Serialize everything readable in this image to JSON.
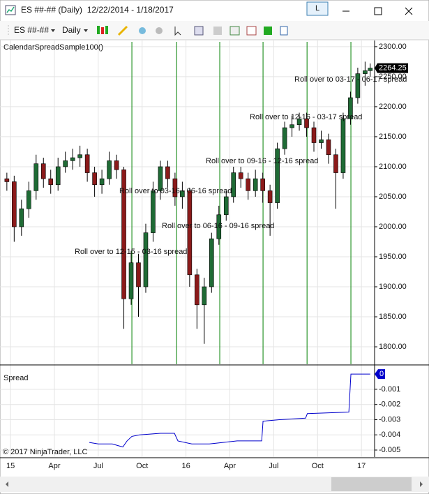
{
  "window": {
    "title": "ES ##-## (Daily)  12/22/2014 - 1/18/2017",
    "button": "L"
  },
  "toolbar": {
    "instrument": "ES ##-##",
    "interval": "Daily"
  },
  "chart_data": [
    {
      "type": "candlestick",
      "title": "CalendarSpreadSample100()",
      "x": [
        -0.25,
        0.25,
        0.75,
        1.25,
        1.75,
        2.25,
        2.75,
        3.25,
        3.75,
        4.25,
        4.75,
        5.25,
        5.75,
        6.25,
        6.75,
        7.25,
        7.75,
        8.25,
        8.75,
        9.25,
        9.75,
        10.25,
        10.75,
        11.25,
        11.75,
        12.25,
        12.75,
        13.25,
        13.75,
        14.25,
        14.75,
        15.25,
        15.75,
        16.25,
        16.75,
        17.25,
        17.75,
        18.25,
        18.75,
        19.25,
        19.75,
        20.25,
        20.75,
        21.25,
        21.75,
        22.25,
        22.75,
        23.25,
        23.75,
        24.25,
        24.6
      ],
      "open": [
        2080,
        2075,
        2000,
        2030,
        2060,
        2105,
        2080,
        2070,
        2100,
        2110,
        2115,
        2120,
        2090,
        2070,
        2080,
        2110,
        2095,
        1880,
        1940,
        1900,
        1990,
        2060,
        2100,
        2080,
        2050,
        2060,
        1920,
        1870,
        1900,
        1980,
        2020,
        2050,
        2090,
        2080,
        2060,
        2080,
        2060,
        2040,
        2130,
        2165,
        2170,
        2180,
        2165,
        2140,
        2145,
        2120,
        2090,
        2180,
        2215,
        2255,
        2260
      ],
      "high": [
        2090,
        2085,
        2045,
        2075,
        2120,
        2115,
        2095,
        2115,
        2125,
        2130,
        2135,
        2130,
        2100,
        2095,
        2125,
        2120,
        2100,
        1960,
        1955,
        2005,
        2075,
        2110,
        2110,
        2090,
        2075,
        2065,
        1930,
        1915,
        1990,
        2035,
        2060,
        2100,
        2100,
        2090,
        2095,
        2090,
        2070,
        2140,
        2175,
        2185,
        2190,
        2190,
        2175,
        2160,
        2155,
        2130,
        2190,
        2225,
        2265,
        2275,
        2272
      ],
      "low": [
        2060,
        1975,
        1985,
        2015,
        2045,
        2065,
        2055,
        2060,
        2090,
        2095,
        2100,
        2075,
        2050,
        2055,
        2070,
        2080,
        1830,
        1870,
        1850,
        1890,
        1975,
        2045,
        2065,
        2035,
        2030,
        1900,
        1830,
        1805,
        1890,
        1970,
        2010,
        2040,
        2065,
        2045,
        2050,
        2040,
        1985,
        2030,
        2120,
        2150,
        2160,
        2150,
        2125,
        2130,
        2105,
        2030,
        2080,
        2170,
        2205,
        2235,
        2250
      ],
      "close": [
        2075,
        2000,
        2030,
        2060,
        2105,
        2080,
        2070,
        2100,
        2110,
        2115,
        2120,
        2090,
        2070,
        2080,
        2110,
        2095,
        1880,
        1940,
        1900,
        1990,
        2060,
        2100,
        2080,
        2050,
        2060,
        1920,
        1870,
        1900,
        1980,
        2020,
        2050,
        2090,
        2080,
        2060,
        2080,
        2060,
        2040,
        2130,
        2165,
        2170,
        2180,
        2165,
        2140,
        2145,
        2120,
        2090,
        2180,
        2215,
        2255,
        2260,
        2264.25
      ],
      "up_color": "#1f6b35",
      "down_color": "#8b1a1a",
      "xlim": [
        -0.72,
        24.9
      ],
      "xticks": [
        {
          "value": 0,
          "label": "15"
        },
        {
          "value": 3,
          "label": "Apr"
        },
        {
          "value": 6,
          "label": "Jul"
        },
        {
          "value": 9,
          "label": "Oct"
        },
        {
          "value": 12,
          "label": "16"
        },
        {
          "value": 15,
          "label": "Apr"
        },
        {
          "value": 18,
          "label": "Jul"
        },
        {
          "value": 21,
          "label": "Oct"
        },
        {
          "value": 24,
          "label": "17"
        }
      ],
      "ylim": [
        1771,
        2308
      ],
      "yticks": [
        {
          "value": 1800,
          "label": "1800.00"
        },
        {
          "value": 1850,
          "label": "1850.00"
        },
        {
          "value": 1900,
          "label": "1900.00"
        },
        {
          "value": 1950,
          "label": "1950.00"
        },
        {
          "value": 2000,
          "label": "2000.00"
        },
        {
          "value": 2050,
          "label": "2050.00"
        },
        {
          "value": 2100,
          "label": "2100.00"
        },
        {
          "value": 2150,
          "label": "2150.00"
        },
        {
          "value": 2200,
          "label": "2200.00"
        },
        {
          "value": 2250,
          "label": "2250.00"
        },
        {
          "value": 2300,
          "label": "2300.00"
        }
      ],
      "grid": true,
      "rollovers": [
        8.3,
        11.36,
        14.31,
        17.27,
        20.28,
        23.28
      ],
      "rollover_color": "#008000",
      "annotations": [
        "Roll over to 12-15 - 03-16 spread",
        "Roll over to 03-16 - 06-16 spread",
        "Roll over to 06-16 - 09-16 spread",
        "Roll over to 09-16 - 12-16 spread",
        "Roll over to 12-16 - 03-17 spread",
        "Roll over to 03-17 - 06-17 spread"
      ]
    },
    {
      "type": "line",
      "title": "Spread",
      "x": [
        5.39,
        6.0,
        6.96,
        7.68,
        7.97,
        8.3,
        8.83,
        10.26,
        11.21,
        11.45,
        12.4,
        13.6,
        15.5,
        17.18,
        17.27,
        18.4,
        20.18,
        20.3,
        23.14,
        23.28,
        24.6
      ],
      "values": [
        -0.0045,
        -0.0046,
        -0.0046,
        -0.0048,
        -0.0044,
        -0.0041,
        -0.004,
        -0.0039,
        -0.0039,
        -0.0044,
        -0.0046,
        -0.0046,
        -0.0044,
        -0.0044,
        -0.0031,
        -0.003,
        -0.0029,
        -0.0026,
        -0.0025,
        0,
        0
      ],
      "color": "#0000cc",
      "ylim": [
        -0.00546,
        0.00056
      ],
      "yticks": [
        -0.001,
        -0.002,
        -0.003,
        -0.004,
        -0.005
      ],
      "grid": true
    }
  ],
  "footer": {
    "copyright": "© 2017 NinjaTrader, LLC"
  }
}
